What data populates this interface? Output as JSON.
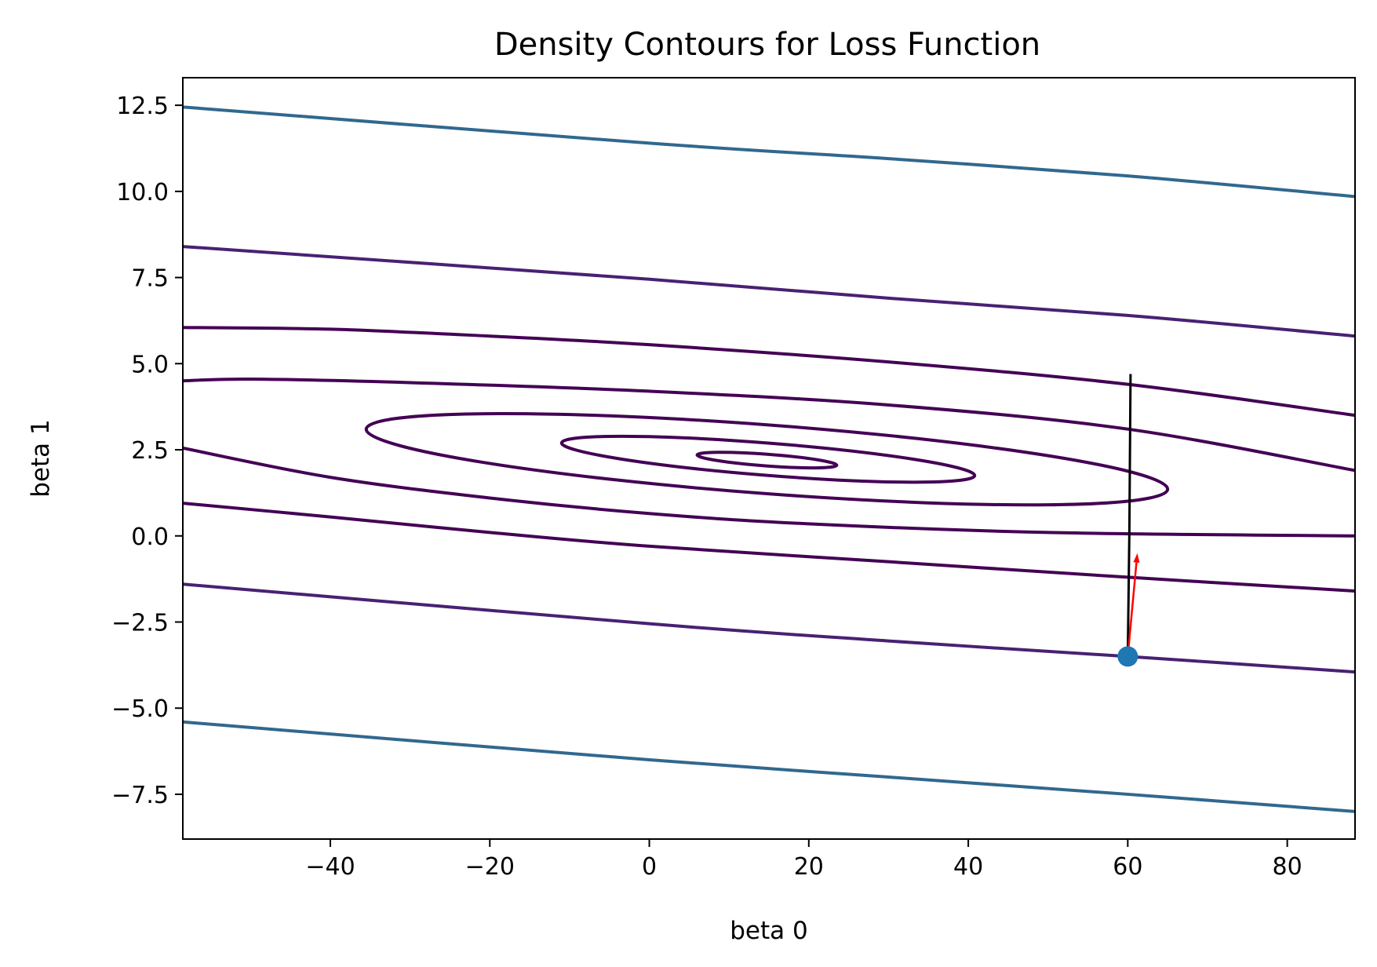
{
  "chart_data": {
    "type": "contour",
    "title": "Density Contours for Loss Function",
    "xlabel": "beta 0",
    "ylabel": "beta 1",
    "xlim": [
      -58.5,
      88.5
    ],
    "ylim": [
      -8.8,
      13.3
    ],
    "xticks": [
      -40,
      -20,
      0,
      20,
      40,
      60,
      80
    ],
    "xtick_labels": [
      "−40",
      "−20",
      "0",
      "20",
      "40",
      "60",
      "80"
    ],
    "yticks": [
      -7.5,
      -5.0,
      -2.5,
      0.0,
      2.5,
      5.0,
      7.5,
      10.0,
      12.5
    ],
    "ytick_labels": [
      "−7.5",
      "−5.0",
      "−2.5",
      "0.0",
      "2.5",
      "5.0",
      "7.5",
      "10.0",
      "12.5"
    ],
    "grid": false,
    "colors": {
      "inner": "#440154",
      "level2": "#482173",
      "level3": "#31688e",
      "start_point": "#1f77b4",
      "path_line": "#000000",
      "gradient_arrow": "#ff0000"
    },
    "closed_contours": [
      {
        "name": "level-1",
        "color": "#440154",
        "center": [
          14.5,
          2.2
        ],
        "vertices": [
          [
            23.5,
            2.05
          ],
          [
            6.0,
            2.35
          ]
        ],
        "half_width_vertical": 0.17
      },
      {
        "name": "level-2",
        "color": "#440154",
        "center": [
          15.0,
          2.2
        ],
        "vertices": [
          [
            40.8,
            1.75
          ],
          [
            -11.0,
            2.7
          ]
        ],
        "half_width_vertical": 0.47
      },
      {
        "name": "level-3",
        "color": "#440154",
        "center": [
          15.0,
          2.2
        ],
        "vertices": [
          [
            65.0,
            1.35
          ],
          [
            -35.5,
            3.1
          ]
        ],
        "half_width_vertical": 1.0
      }
    ],
    "open_contours": [
      {
        "name": "upper-1",
        "color": "#440154",
        "points": [
          [
            -58.5,
            4.5
          ],
          [
            -50,
            4.55
          ],
          [
            -30,
            4.45
          ],
          [
            0,
            4.2
          ],
          [
            30,
            3.8
          ],
          [
            60,
            3.1
          ],
          [
            88.5,
            1.9
          ]
        ]
      },
      {
        "name": "lower-1",
        "color": "#440154",
        "points": [
          [
            -58.5,
            2.55
          ],
          [
            -40,
            1.7
          ],
          [
            -20,
            1.1
          ],
          [
            0,
            0.65
          ],
          [
            20,
            0.35
          ],
          [
            50,
            0.1
          ],
          [
            88.5,
            0.0
          ]
        ]
      },
      {
        "name": "upper-2",
        "color": "#440154",
        "points": [
          [
            -58.5,
            6.05
          ],
          [
            -40,
            6.0
          ],
          [
            -20,
            5.8
          ],
          [
            0,
            5.55
          ],
          [
            30,
            5.05
          ],
          [
            60,
            4.4
          ],
          [
            88.5,
            3.5
          ]
        ]
      },
      {
        "name": "lower-2",
        "color": "#440154",
        "points": [
          [
            -58.5,
            0.95
          ],
          [
            -40,
            0.55
          ],
          [
            -20,
            0.1
          ],
          [
            0,
            -0.3
          ],
          [
            30,
            -0.75
          ],
          [
            60,
            -1.2
          ],
          [
            88.5,
            -1.6
          ]
        ]
      },
      {
        "name": "upper-3",
        "color": "#482173",
        "points": [
          [
            -58.5,
            8.4
          ],
          [
            0,
            7.45
          ],
          [
            30,
            6.9
          ],
          [
            60,
            6.4
          ],
          [
            88.5,
            5.8
          ]
        ]
      },
      {
        "name": "lower-3",
        "color": "#482173",
        "points": [
          [
            -58.5,
            -1.4
          ],
          [
            0,
            -2.55
          ],
          [
            30,
            -3.05
          ],
          [
            60,
            -3.5
          ],
          [
            88.5,
            -3.95
          ]
        ]
      },
      {
        "name": "upper-4",
        "color": "#31688e",
        "points": [
          [
            -58.5,
            12.45
          ],
          [
            0,
            11.4
          ],
          [
            30,
            10.95
          ],
          [
            60,
            10.45
          ],
          [
            88.5,
            9.85
          ]
        ]
      },
      {
        "name": "lower-4",
        "color": "#31688e",
        "points": [
          [
            -58.5,
            -5.4
          ],
          [
            0,
            -6.5
          ],
          [
            30,
            -7.0
          ],
          [
            60,
            -7.5
          ],
          [
            88.5,
            -8.0
          ]
        ]
      }
    ],
    "start_point": {
      "x": 60.0,
      "y": -3.5
    },
    "path_line": [
      [
        60.0,
        -3.5
      ],
      [
        60.2,
        0.1
      ],
      [
        60.35,
        4.7
      ]
    ],
    "gradient_arrow": {
      "from": [
        60.0,
        -3.5
      ],
      "to": [
        61.2,
        -0.5
      ]
    }
  }
}
